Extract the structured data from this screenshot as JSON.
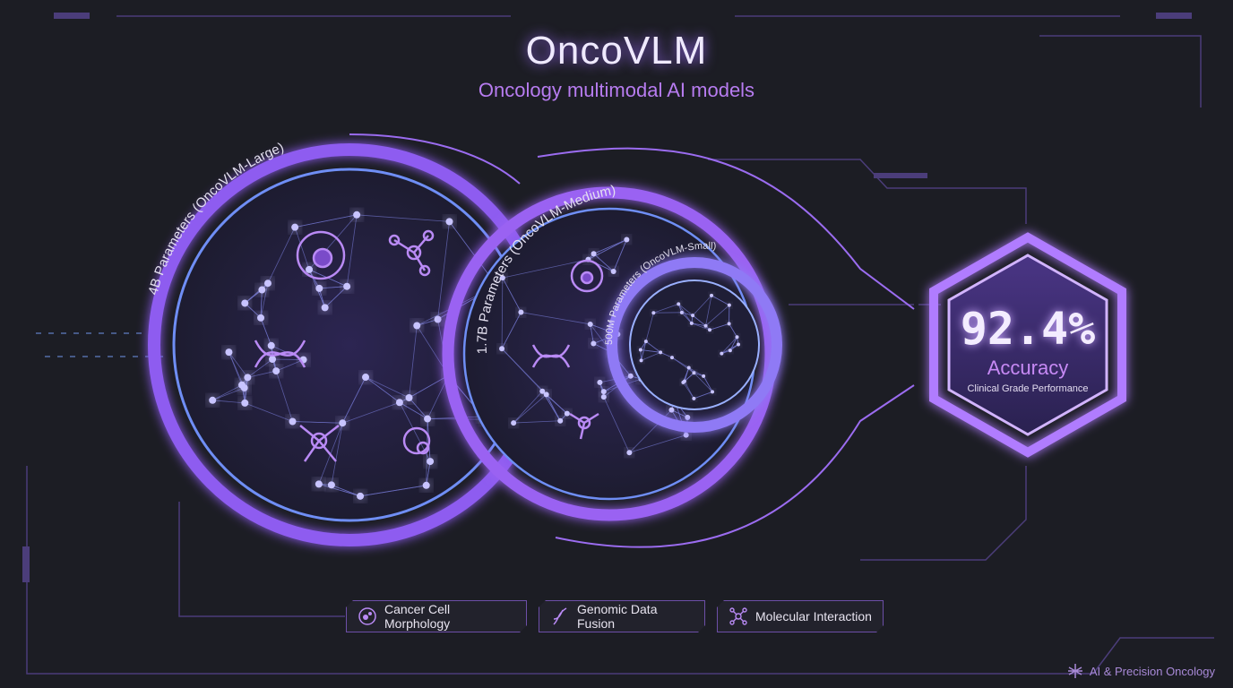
{
  "header": {
    "title": "OncoVLM",
    "subtitle": "Oncology multimodal AI models"
  },
  "models": [
    {
      "label": "4B Parameters (OncoVLM-Large)"
    },
    {
      "label": "1.7B Parameters (OncoVLM-Medium)"
    },
    {
      "label": "500M Parameters (OncoVLM-Small)"
    }
  ],
  "result": {
    "value": "92.4%",
    "metric": "Accuracy",
    "caption": "Clinical Grade Performance"
  },
  "features": [
    {
      "label": "Cancer Cell Morphology",
      "icon": "cell-icon"
    },
    {
      "label": "Genomic Data Fusion",
      "icon": "dna-icon"
    },
    {
      "label": "Molecular Interaction",
      "icon": "molecule-icon"
    }
  ],
  "footer": {
    "label": "AI & Precision Oncology",
    "icon": "neural-tree-icon"
  },
  "colors": {
    "background": "#1c1d24",
    "accent": "#a66bff",
    "glow": "#c9a6ff"
  }
}
